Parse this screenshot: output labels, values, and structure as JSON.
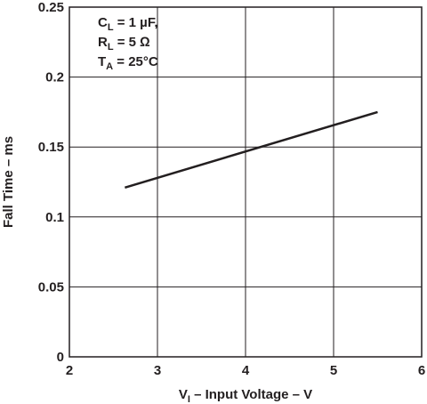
{
  "chart_data": {
    "type": "line",
    "title": "",
    "xlabel": {
      "prefix": "V",
      "sub": "I",
      "rest": " – Input Voltage – V"
    },
    "ylabel": "Fall Time – ms",
    "xlim": [
      2,
      6
    ],
    "ylim": [
      0,
      0.25
    ],
    "x_ticks": [
      "2",
      "3",
      "4",
      "5",
      "6"
    ],
    "y_ticks": [
      "0",
      "0.05",
      "0.1",
      "0.15",
      "0.2",
      "0.25"
    ],
    "grid": true,
    "legend": "none",
    "series": [
      {
        "x": [
          2.63,
          5.5
        ],
        "y": [
          0.121,
          0.175
        ]
      }
    ],
    "annotations": [
      {
        "main": "C",
        "sub": "L",
        "rest": " = 1 µF,"
      },
      {
        "main": "R",
        "sub": "L",
        "rest": " = 5 Ω"
      },
      {
        "main": "T",
        "sub": "A",
        "rest": " = 25°C"
      }
    ],
    "colors": {
      "line": "#231f20",
      "grid": "#231f20",
      "background": "#ffffff"
    }
  }
}
